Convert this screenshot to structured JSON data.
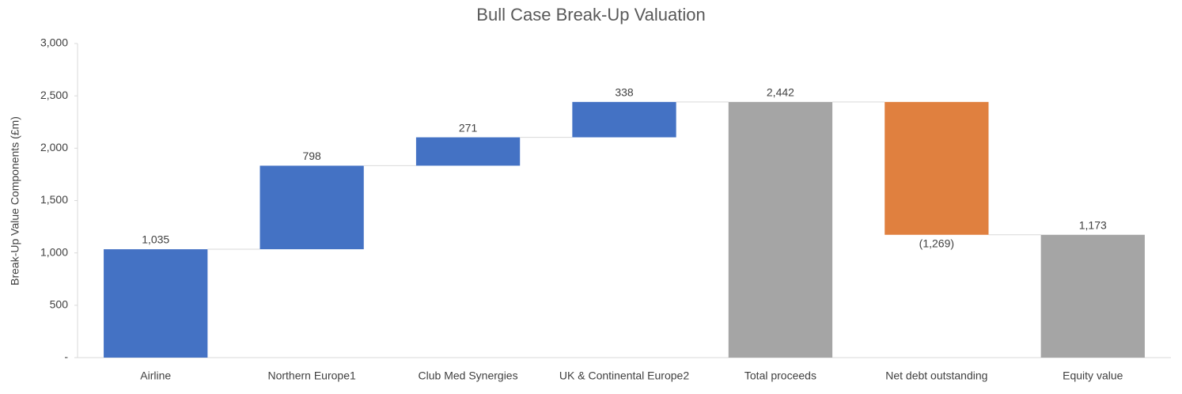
{
  "chart_data": {
    "type": "waterfall",
    "title": "Bull Case Break-Up Valuation",
    "y_label": "Break-Up Value Components (£m)",
    "categories": [
      "Airline",
      "Northern Europe1",
      "Club Med Synergies",
      "UK & Continental Europe2",
      "Total proceeds",
      "Net debt outstanding",
      "Equity value"
    ],
    "values": [
      1035,
      798,
      271,
      338,
      2442,
      -1269,
      1173
    ],
    "value_labels": [
      "1,035",
      "798",
      "271",
      "338",
      "2,442",
      "(1,269)",
      "1,173"
    ],
    "totals": [
      false,
      false,
      false,
      false,
      true,
      false,
      true
    ],
    "colors": [
      "#4472c4",
      "#4472c4",
      "#4472c4",
      "#4472c4",
      "#a5a5a5",
      "#e0803f",
      "#a5a5a5"
    ],
    "ylim": [
      0,
      3000
    ],
    "yticks": [
      {
        "value": 0,
        "label": "-"
      },
      500,
      {
        "value": 1000,
        "label": "1,000"
      },
      {
        "value": 1500,
        "label": "1,500"
      },
      {
        "value": 2000,
        "label": "2,000"
      },
      {
        "value": 2500,
        "label": "2,500"
      },
      {
        "value": 3000,
        "label": "3,000"
      }
    ]
  }
}
